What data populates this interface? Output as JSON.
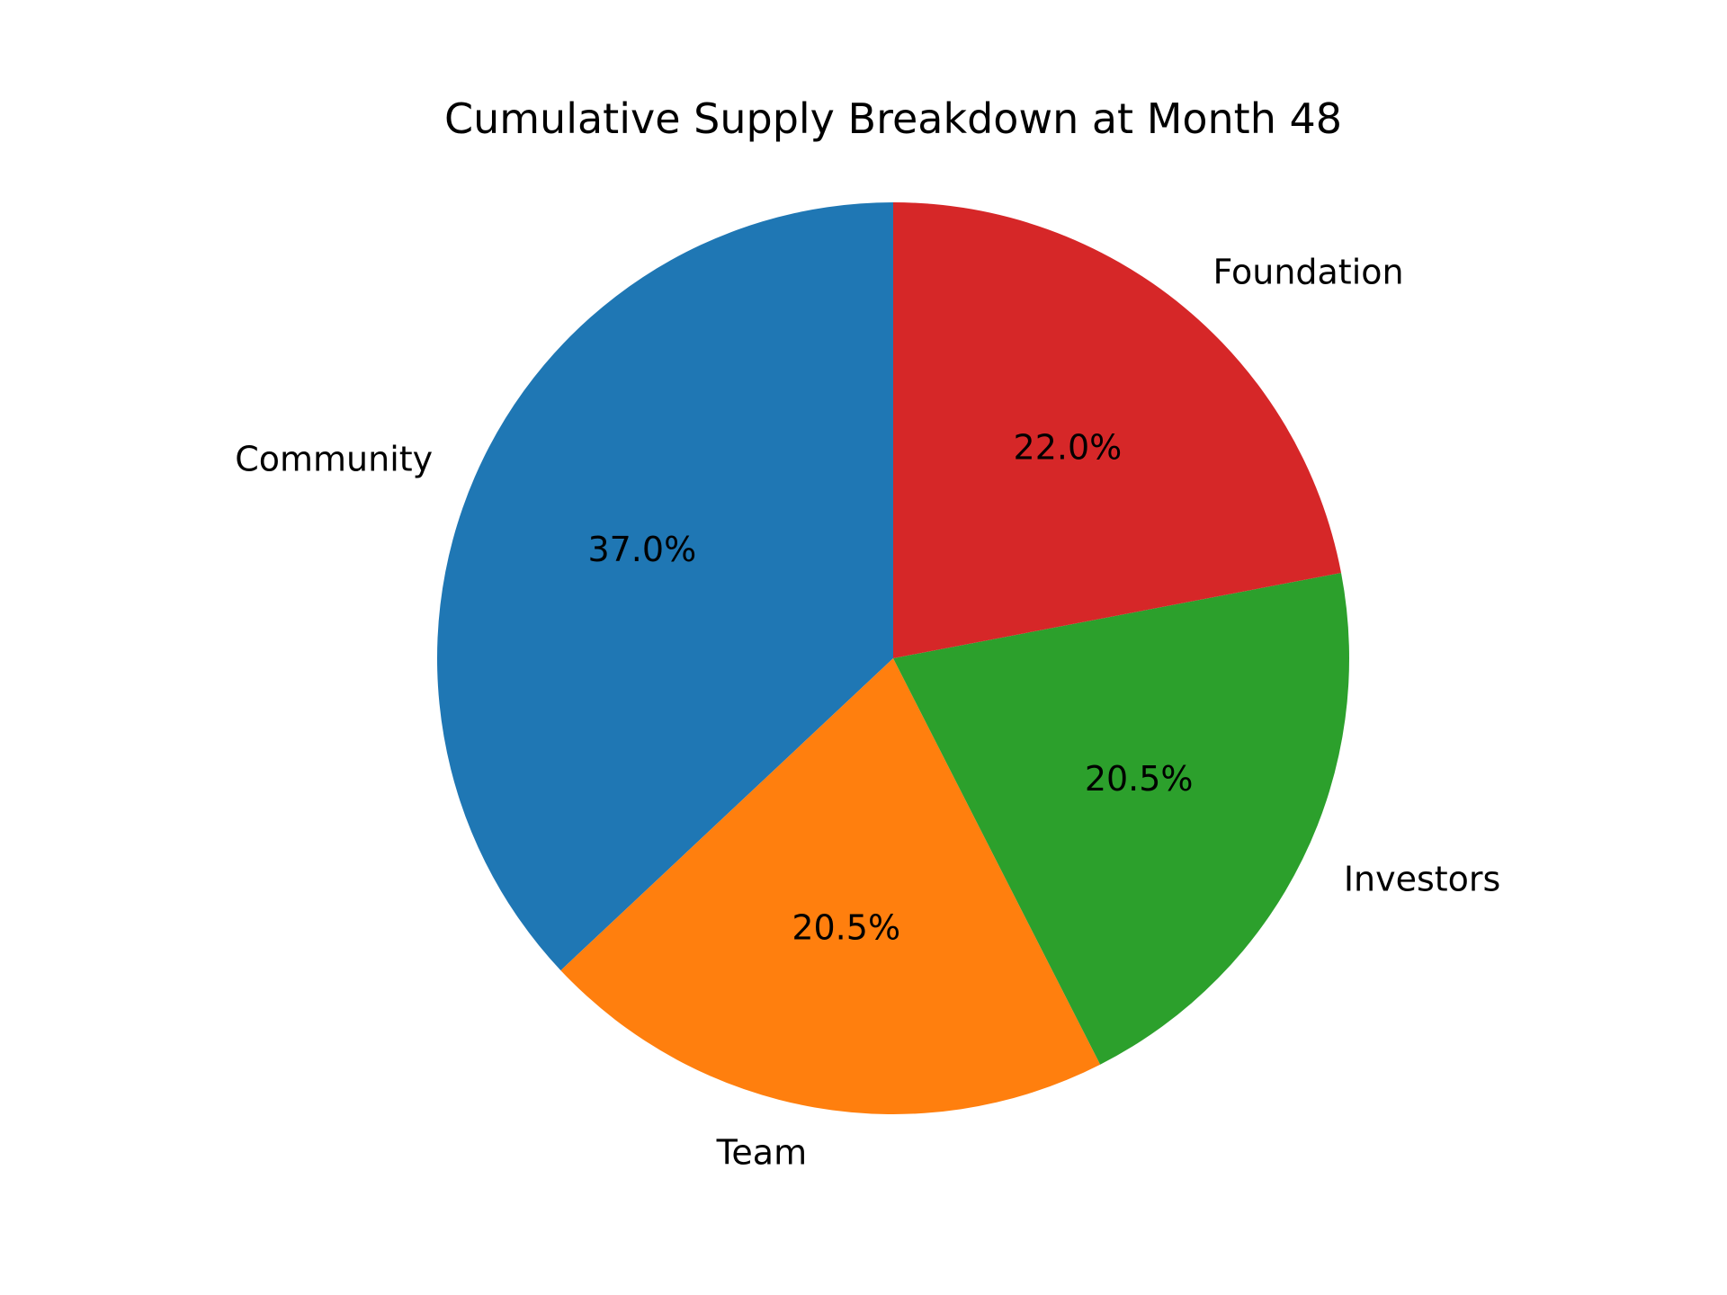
{
  "chart_data": {
    "type": "pie",
    "title": "Cumulative Supply Breakdown at Month 48",
    "start_angle_deg": 90,
    "direction": "counterclockwise",
    "slices": [
      {
        "label": "Community",
        "value": 37.0,
        "pct_text": "37.0%",
        "color": "#1f77b4"
      },
      {
        "label": "Team",
        "value": 20.5,
        "pct_text": "20.5%",
        "color": "#ff7f0e"
      },
      {
        "label": "Investors",
        "value": 20.5,
        "pct_text": "20.5%",
        "color": "#2ca02c"
      },
      {
        "label": "Foundation",
        "value": 22.0,
        "pct_text": "22.0%",
        "color": "#d62728"
      }
    ]
  }
}
